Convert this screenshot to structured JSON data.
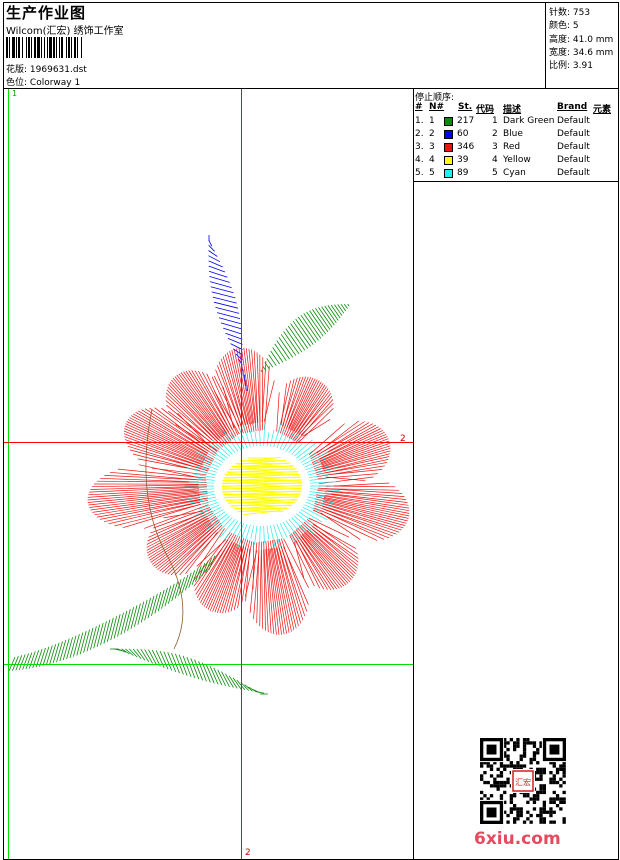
{
  "header": {
    "title": "生产作业图",
    "company": "Wilcom(汇宏) 绣饰工作室",
    "design_label": "花版:",
    "design_file": "1969631.dst",
    "color_label": "色位:",
    "colorway": "Colorway 1"
  },
  "stats": {
    "stitches": "针数: 753",
    "colors": "颜色: 5",
    "height": "高度: 41.0 mm",
    "width": "宽度: 34.6 mm",
    "scale": "比例: 3.91"
  },
  "stop_sequence": {
    "title": "停止顺序:",
    "columns": [
      "#",
      "N#",
      "St.",
      "代码",
      "描述",
      "Brand",
      "元素"
    ],
    "rows": [
      {
        "idx": "1.",
        "n": "1",
        "color": "#0a8a0a",
        "st": "217",
        "code": "1",
        "desc": "Dark Green",
        "brand": "Default"
      },
      {
        "idx": "2.",
        "n": "2",
        "color": "#0000ee",
        "st": "60",
        "code": "2",
        "desc": "Blue",
        "brand": "Default"
      },
      {
        "idx": "3.",
        "n": "3",
        "color": "#ee1111",
        "st": "346",
        "code": "3",
        "desc": "Red",
        "brand": "Default"
      },
      {
        "idx": "4.",
        "n": "4",
        "color": "#ffff00",
        "st": "39",
        "code": "4",
        "desc": "Yellow",
        "brand": "Default"
      },
      {
        "idx": "5.",
        "n": "5",
        "color": "#22eeee",
        "st": "89",
        "code": "5",
        "desc": "Cyan",
        "brand": "Default"
      }
    ]
  },
  "guides": {
    "vertical_top_label": "1",
    "horizontal_label": "2",
    "bottom_label": "2"
  },
  "thread_colors": {
    "green": "#0a8a0a",
    "blue": "#0000ee",
    "red": "#ee1111",
    "yellow": "#ffff00",
    "cyan": "#22eeee",
    "guide_red": "#ff0000",
    "guide_green": "#00dd00"
  },
  "watermark": "6xiu.com",
  "qr_stamp": "汇宏"
}
